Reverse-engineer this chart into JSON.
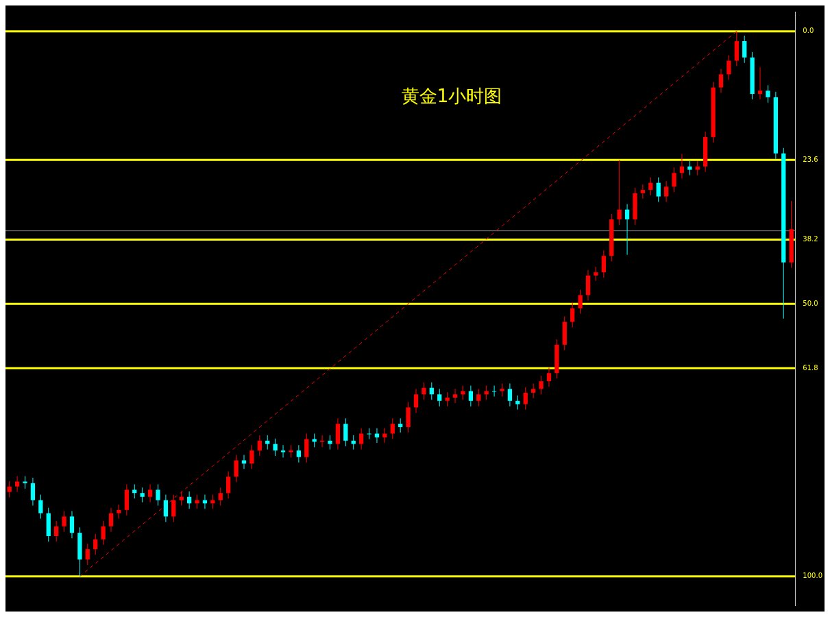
{
  "chart_data": {
    "type": "candlestick",
    "title": "黄金1小时图",
    "categories": [
      null,
      null,
      null,
      null,
      null,
      null,
      null,
      null,
      null,
      null,
      null,
      null,
      null,
      null,
      null,
      null,
      null,
      null,
      null,
      null,
      null,
      null,
      null,
      null,
      null,
      null,
      null,
      null,
      null,
      null,
      null,
      null,
      null,
      null,
      null,
      null,
      null,
      null,
      null,
      null,
      null,
      null,
      null,
      null,
      null,
      null,
      null,
      null,
      null,
      null,
      null,
      null,
      null,
      null,
      null,
      null,
      null,
      null,
      null,
      null,
      null,
      null,
      null,
      null,
      null,
      null,
      null,
      null,
      null,
      null,
      null,
      null,
      null,
      null,
      null,
      null,
      null,
      null,
      null,
      null,
      null,
      null,
      null,
      null,
      null,
      null,
      null,
      null,
      null,
      null,
      null,
      null,
      null,
      null,
      null,
      null,
      null,
      null,
      null,
      null,
      null
    ],
    "ylim": [
      105.3,
      -3.6
    ],
    "yticks": [
      {
        "value": 0,
        "label": "0.0"
      },
      {
        "value": 23.6,
        "label": "23.6"
      },
      {
        "value": 38.2,
        "label": "38.2"
      },
      {
        "value": 50,
        "label": "50.0"
      },
      {
        "value": 61.8,
        "label": "61.8"
      },
      {
        "value": 100,
        "label": "100.0"
      }
    ],
    "tick_labels": "y",
    "ref_lines": [
      {
        "axis": "y",
        "value": 0,
        "color": "#ffff00"
      },
      {
        "axis": "y",
        "value": 23.6,
        "color": "#ffff00"
      },
      {
        "axis": "y",
        "value": 38.2,
        "color": "#ffff00"
      },
      {
        "axis": "y",
        "value": 50,
        "color": "#ffff00"
      },
      {
        "axis": "y",
        "value": 61.8,
        "color": "#ffff00"
      },
      {
        "axis": "y",
        "value": 100,
        "color": "#ffff00"
      },
      {
        "axis": "y",
        "value": 36.6,
        "color": "#808080"
      }
    ],
    "series": [
      {
        "colors": [
          "#ff0000",
          "#ff0000",
          "#00ffff",
          "#00ffff",
          "#00ffff",
          "#00ffff",
          "#ff0000",
          "#ff0000",
          "#00ffff",
          "#00ffff",
          "#ff0000",
          "#ff0000",
          "#ff0000",
          "#ff0000",
          "#ff0000",
          "#ff0000",
          "#00ffff",
          "#00ffff",
          "#ff0000",
          "#00ffff",
          "#00ffff",
          "#ff0000",
          "#ff0000",
          "#00ffff",
          "#ff0000",
          "#00ffff",
          "#ff0000",
          "#ff0000",
          "#ff0000",
          "#ff0000",
          "#00ffff",
          "#ff0000",
          "#ff0000",
          "#00ffff",
          "#00ffff",
          "#00ffff",
          "#ff0000",
          "#00ffff",
          "#ff0000",
          "#00ffff",
          "#ff0000",
          "#00ffff",
          "#ff0000",
          "#00ffff",
          "#00ffff",
          "#ff0000",
          "#00ffff",
          "#00ffff",
          "#ff0000",
          "#ff0000",
          "#00ffff",
          "#ff0000",
          "#ff0000",
          "#ff0000",
          "#00ffff",
          "#00ffff",
          "#ff0000",
          "#ff0000",
          "#ff0000",
          "#00ffff",
          "#ff0000",
          "#ff0000",
          "#00ffff",
          "#ff0000",
          "#00ffff",
          "#00ffff",
          "#ff0000",
          "#ff0000",
          "#ff0000",
          "#ff0000",
          "#ff0000",
          "#ff0000",
          "#ff0000",
          "#ff0000",
          "#ff0000",
          "#ff0000",
          "#ff0000",
          "#ff0000",
          "#ff0000",
          "#00ffff",
          "#ff0000",
          "#ff0000",
          "#ff0000",
          "#00ffff",
          "#ff0000",
          "#ff0000",
          "#ff0000",
          "#00ffff",
          "#ff0000",
          "#ff0000",
          "#ff0000",
          "#ff0000",
          "#ff0000",
          "#ff0000",
          "#00ffff",
          "#00ffff",
          "#ff0000",
          "#00ffff",
          "#00ffff",
          "#00ffff",
          "#ff0000"
        ],
        "ohlc": [
          [
            84.5,
            85.5,
            82.5,
            83.5
          ],
          [
            83.5,
            84.5,
            81.6,
            82.6
          ],
          [
            82.6,
            83.9,
            81.6,
            82.9
          ],
          [
            82.9,
            87.0,
            81.9,
            86.0
          ],
          [
            86.0,
            89.4,
            85.0,
            88.4
          ],
          [
            88.4,
            93.6,
            87.4,
            92.6
          ],
          [
            92.6,
            93.6,
            89.8,
            90.8
          ],
          [
            90.8,
            91.8,
            88.0,
            89.0
          ],
          [
            89.0,
            93.0,
            88.0,
            92.0
          ],
          [
            92.0,
            100.0,
            91.0,
            96.9
          ],
          [
            96.9,
            97.9,
            94.0,
            95.0
          ],
          [
            95.0,
            96.0,
            92.2,
            93.2
          ],
          [
            93.2,
            94.2,
            89.8,
            90.8
          ],
          [
            90.8,
            91.8,
            87.4,
            88.4
          ],
          [
            88.4,
            89.4,
            86.8,
            87.8
          ],
          [
            87.8,
            88.8,
            83.1,
            84.1
          ],
          [
            84.1,
            85.7,
            83.1,
            84.7
          ],
          [
            84.7,
            86.4,
            83.7,
            85.4
          ],
          [
            85.4,
            86.4,
            83.1,
            84.1
          ],
          [
            84.1,
            87.0,
            83.1,
            86.0
          ],
          [
            86.0,
            90.0,
            85.0,
            89.0
          ],
          [
            89.0,
            90.0,
            85.0,
            86.0
          ],
          [
            86.0,
            87.0,
            84.4,
            85.4
          ],
          [
            85.4,
            87.6,
            84.4,
            86.6
          ],
          [
            86.6,
            87.6,
            85.0,
            86.0
          ],
          [
            86.0,
            87.6,
            85.0,
            86.6
          ],
          [
            86.6,
            87.6,
            85.0,
            86.0
          ],
          [
            86.0,
            87.0,
            83.7,
            84.7
          ],
          [
            84.7,
            85.7,
            80.7,
            81.7
          ],
          [
            81.7,
            82.7,
            77.7,
            78.7
          ],
          [
            78.7,
            80.3,
            77.7,
            79.3
          ],
          [
            79.3,
            80.3,
            75.9,
            76.9
          ],
          [
            76.9,
            77.9,
            74.1,
            75.1
          ],
          [
            75.1,
            76.7,
            74.1,
            75.7
          ],
          [
            75.7,
            77.9,
            74.7,
            76.9
          ],
          [
            76.9,
            78.2,
            75.9,
            77.2
          ],
          [
            77.2,
            78.2,
            75.9,
            76.9
          ],
          [
            76.9,
            79.1,
            75.9,
            78.1
          ],
          [
            78.1,
            79.1,
            73.8,
            74.8
          ],
          [
            74.8,
            76.3,
            73.8,
            75.3
          ],
          [
            75.3,
            76.3,
            74.1,
            75.1
          ],
          [
            75.1,
            76.7,
            74.1,
            75.7
          ],
          [
            75.7,
            76.7,
            71.0,
            72.0
          ],
          [
            72.0,
            76.1,
            71.0,
            75.1
          ],
          [
            75.1,
            76.7,
            74.1,
            75.7
          ],
          [
            75.7,
            76.7,
            72.8,
            73.8
          ],
          [
            73.8,
            74.8,
            72.8,
            73.8
          ],
          [
            73.8,
            75.5,
            72.8,
            74.5
          ],
          [
            74.5,
            75.5,
            72.8,
            73.8
          ],
          [
            73.8,
            74.8,
            71.0,
            72.0
          ],
          [
            72.0,
            73.6,
            71.0,
            72.6
          ],
          [
            72.6,
            73.6,
            68.0,
            69.0
          ],
          [
            69.0,
            70.0,
            65.6,
            66.6
          ],
          [
            66.6,
            67.6,
            64.4,
            65.4
          ],
          [
            65.4,
            67.6,
            64.4,
            66.6
          ],
          [
            66.6,
            68.8,
            65.6,
            67.8
          ],
          [
            67.8,
            68.8,
            66.2,
            67.2
          ],
          [
            67.2,
            68.2,
            65.6,
            66.6
          ],
          [
            66.6,
            67.6,
            65.0,
            66.0
          ],
          [
            66.0,
            68.8,
            65.0,
            67.8
          ],
          [
            67.8,
            68.8,
            65.6,
            66.6
          ],
          [
            66.6,
            67.6,
            65.0,
            66.0
          ],
          [
            66.0,
            67.0,
            65.0,
            66.0
          ],
          [
            66.0,
            67.0,
            64.6,
            65.6
          ],
          [
            65.6,
            68.8,
            64.6,
            67.8
          ],
          [
            67.8,
            69.4,
            66.8,
            68.4
          ],
          [
            68.4,
            69.4,
            65.3,
            66.3
          ],
          [
            66.3,
            67.3,
            64.6,
            65.6
          ],
          [
            65.6,
            66.6,
            63.2,
            64.2
          ],
          [
            64.2,
            65.2,
            61.7,
            62.7
          ],
          [
            62.7,
            63.7,
            56.5,
            57.5
          ],
          [
            57.5,
            58.5,
            52.3,
            53.3
          ],
          [
            53.3,
            54.3,
            49.8,
            50.8
          ],
          [
            50.8,
            51.8,
            47.4,
            48.4
          ],
          [
            48.4,
            49.4,
            43.8,
            44.8
          ],
          [
            44.8,
            45.8,
            43.2,
            44.2
          ],
          [
            44.2,
            45.2,
            40.2,
            41.2
          ],
          [
            41.2,
            42.2,
            33.5,
            34.5
          ],
          [
            34.5,
            35.5,
            23.6,
            32.7
          ],
          [
            32.7,
            41.0,
            31.7,
            34.5
          ],
          [
            34.5,
            35.5,
            28.7,
            29.7
          ],
          [
            29.7,
            30.7,
            28.1,
            29.1
          ],
          [
            29.1,
            30.1,
            26.8,
            27.8
          ],
          [
            27.8,
            31.3,
            26.8,
            30.3
          ],
          [
            30.3,
            31.3,
            27.5,
            28.5
          ],
          [
            28.5,
            29.5,
            25.0,
            26.0
          ],
          [
            26.0,
            27.0,
            22.5,
            24.8
          ],
          [
            24.8,
            26.4,
            23.8,
            25.4
          ],
          [
            25.4,
            26.4,
            23.8,
            24.8
          ],
          [
            24.8,
            25.8,
            18.4,
            19.4
          ],
          [
            19.4,
            20.4,
            9.3,
            10.3
          ],
          [
            10.3,
            11.3,
            6.9,
            7.9
          ],
          [
            7.9,
            8.9,
            4.4,
            5.4
          ],
          [
            5.4,
            6.4,
            0.0,
            1.8
          ],
          [
            1.8,
            5.8,
            0.8,
            4.8
          ],
          [
            4.8,
            12.5,
            3.8,
            11.5
          ],
          [
            11.5,
            12.5,
            6.6,
            10.9
          ],
          [
            10.9,
            13.1,
            9.9,
            12.1
          ],
          [
            12.1,
            23.4,
            11.1,
            22.4
          ],
          [
            22.4,
            52.7,
            21.4,
            42.4
          ],
          [
            42.4,
            43.4,
            31.1,
            36.3
          ]
        ]
      },
      {
        "type": "line",
        "color": "#ff0000",
        "line_style": "dashed",
        "values": [
          null,
          null,
          null,
          null,
          null,
          null,
          null,
          null,
          null,
          100,
          null,
          null,
          null,
          null,
          null,
          null,
          null,
          null,
          null,
          null,
          null,
          null,
          null,
          null,
          null,
          null,
          null,
          null,
          null,
          null,
          null,
          null,
          null,
          null,
          null,
          null,
          null,
          null,
          null,
          null,
          null,
          null,
          null,
          null,
          null,
          null,
          null,
          null,
          null,
          null,
          null,
          null,
          null,
          null,
          null,
          null,
          null,
          null,
          null,
          null,
          null,
          null,
          null,
          null,
          null,
          null,
          null,
          null,
          null,
          null,
          null,
          null,
          null,
          null,
          null,
          null,
          null,
          null,
          null,
          null,
          null,
          null,
          null,
          null,
          null,
          null,
          null,
          null,
          null,
          null,
          null,
          null,
          null,
          0,
          null,
          null,
          null,
          null,
          null,
          null,
          null
        ]
      }
    ]
  }
}
